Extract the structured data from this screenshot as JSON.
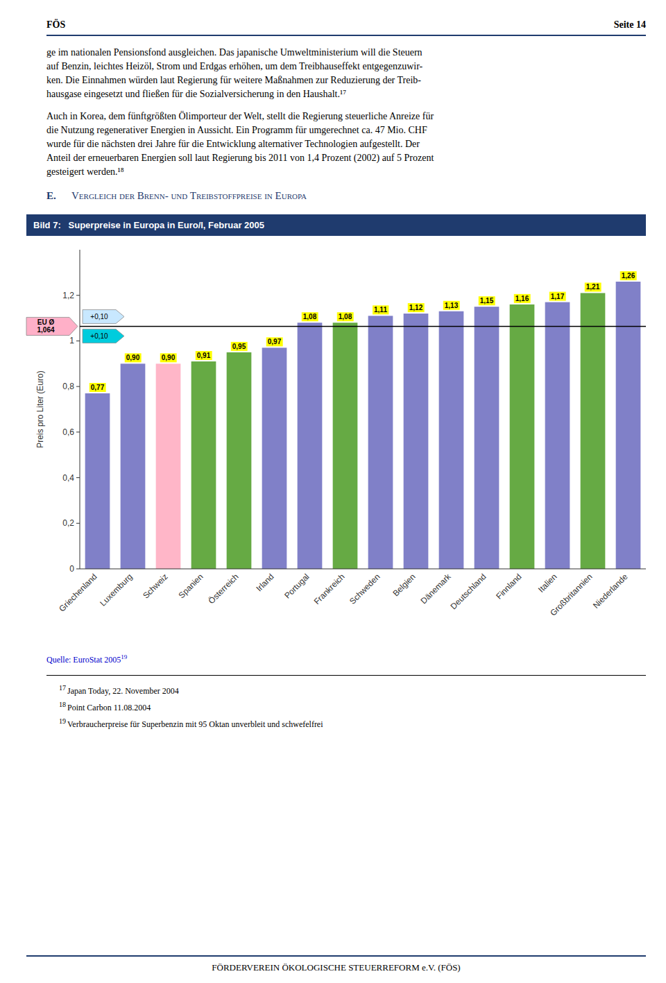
{
  "header_left": "FÖS",
  "header_right": "Seite 14",
  "body_text": [
    [
      "ge im nationalen Pensionsfond ausgleichen. Das japanische Umweltministerium will die Steuern",
      "auf Benzin, leichtes Heizöl, Strom und Erdgas erhöhen, um dem Treibhauseffekt entgegenzuwir-",
      "ken. Die Einnahmen würden laut Regierung für weitere Maßnahmen zur Reduzierung der Treib-",
      "hausgase eingesetzt und fließen für die Sozialversicherung in den Haushalt.¹⁷"
    ],
    [
      "Auch in Korea, dem fünftgrößten Ölimporteur der Welt, stellt die Regierung steuerliche Anreize für",
      "die Nutzung regenerativer Energien in Aussicht. Ein Programm für umgerechnet ca. 47 Mio. CHF",
      "wurde für die nächsten drei Jahre für die Entwicklung alternativer Technologien aufgestellt. Der",
      "Anteil der erneuerbaren Energien soll laut Regierung bis 2011 von 1,4 Prozent (2002) auf 5 Prozent",
      "gesteigert werden.¹⁸"
    ]
  ],
  "section_number": "E.",
  "section_title": "Vergleich der Brenn- und Treibstoffpreise in Europa",
  "source": "Quelle: EuroStat 2005",
  "source_superscript": "19",
  "footnotes": [
    {
      "number": "17",
      "text": "Japan Today, 22. November 2004"
    },
    {
      "number": "18",
      "text": "Point Carbon 11.08.2004"
    },
    {
      "number": "19",
      "text": "Verbraucherpreise für Superbenzin mit 95 Oktan unverbleit und schwefelfrei"
    }
  ],
  "footer": "FÖRDERVEREIN ÖKOLOGISCHE STEUERREFORM e.V. (FÖS)",
  "chart_data": {
    "type": "bar",
    "title": "Bild 7:   Superpreise in Europa in Euro/l, Februar 2005",
    "ylabel": "Preis pro Liter (Euro)",
    "categories": [
      "Griechenland",
      "Luxemburg",
      "Schweiz",
      "Spanien",
      "Österreich",
      "Irland",
      "Portugal",
      "Frankreich",
      "Schweden",
      "Belgien",
      "Dänemark",
      "Deutschland",
      "Finnland",
      "Italien",
      "Großbritannien",
      "Niederlande"
    ],
    "values": [
      0.77,
      0.9,
      0.9,
      0.91,
      0.95,
      0.97,
      1.08,
      1.08,
      1.11,
      1.12,
      1.13,
      1.15,
      1.16,
      1.17,
      1.21,
      1.26
    ],
    "value_labels": [
      "0,77",
      "0,90",
      "0,90",
      "0,91",
      "0,95",
      "0,97",
      "1,08",
      "1,08",
      "1,11",
      "1,12",
      "1,13",
      "1,15",
      "1,16",
      "1,17",
      "1,21",
      "1,26"
    ],
    "colors": [
      "#8080C8",
      "#8080C8",
      "#FFB6C8",
      "#66AA44",
      "#66AA44",
      "#8080C8",
      "#8080C8",
      "#66AA44",
      "#8080C8",
      "#8080C8",
      "#8080C8",
      "#8080C8",
      "#66AA44",
      "#8080C8",
      "#66AA44",
      "#8080C8"
    ],
    "data_labels": true,
    "grid": false,
    "ylim": [
      0,
      1.4
    ],
    "yticks": [
      0,
      {
        "value": 0.2,
        "label": "0,2"
      },
      {
        "value": 0.4,
        "label": "0,4"
      },
      {
        "value": 0.6,
        "label": "0,6"
      },
      {
        "value": 0.8,
        "label": "0,8"
      },
      1,
      {
        "value": 1.2,
        "label": "1,2"
      }
    ],
    "annotations": [
      {
        "label": "EU Ø\n1,064",
        "value": 1.064,
        "color": "#FFB0C8"
      },
      {
        "label": "+0,10",
        "color": "#C8E8FF"
      },
      {
        "label": "+0,10",
        "color": "#00CCDD"
      }
    ]
  }
}
